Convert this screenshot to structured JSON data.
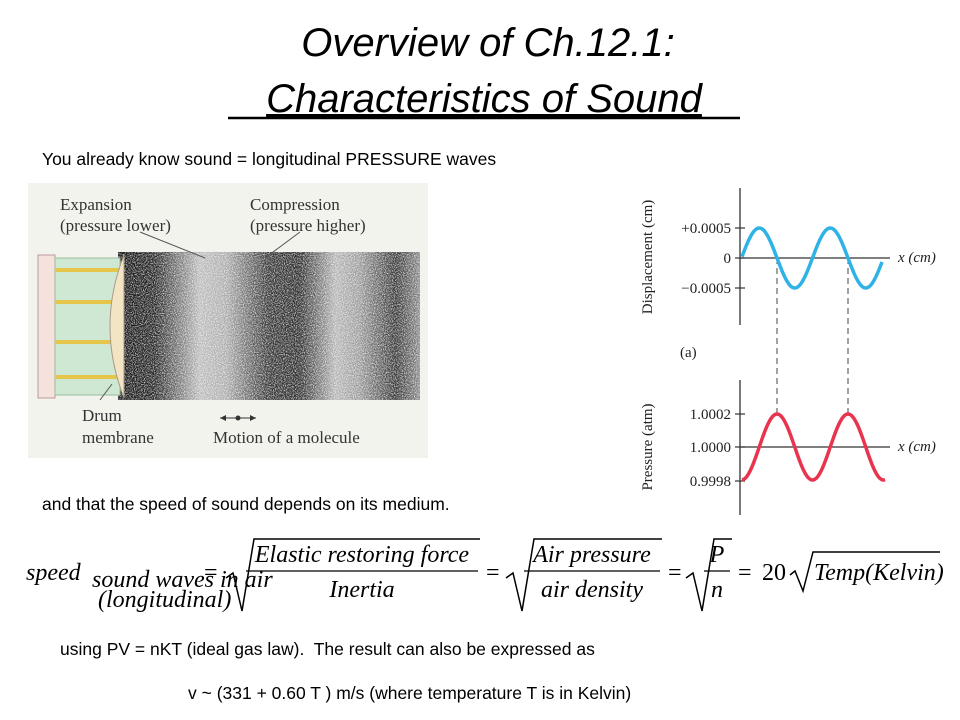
{
  "title": {
    "line1": "Overview of Ch.12.1:",
    "line2": "Characteristics of Sound"
  },
  "intro": "You already know sound = longitudinal PRESSURE waves",
  "figure_left": {
    "expansion": "Expansion",
    "expansion_note": "(pressure lower)",
    "compression": "Compression",
    "compression_note": "(pressure higher)",
    "drum": "Drum",
    "membrane": "membrane",
    "motion": "Motion of a molecule"
  },
  "figure_right": {
    "top": {
      "axis_title": "Displacement (cm)",
      "ticks": [
        "+0.0005",
        "0",
        "−0.0005"
      ],
      "x_label": "x (cm)",
      "panel": "(a)"
    },
    "bottom": {
      "axis_title": "Pressure (atm)",
      "ticks": [
        "1.0002",
        "1.0000",
        "0.9998"
      ],
      "x_label": "x (cm)"
    }
  },
  "medium_text": "and that the speed of sound depends on its medium.",
  "equation": {
    "lhs": "speed",
    "subscript": "sound waves in air",
    "note": "(longitudinal)",
    "equals": "=",
    "term1": {
      "numerator": "Elastic restoring force",
      "denominator": "Inertia"
    },
    "term2": {
      "numerator": "Air pressure",
      "denominator": "air density"
    },
    "term3": {
      "numerator": "P",
      "denominator": "n"
    },
    "coefficient": "20",
    "radicand": "Temp(Kelvin)"
  },
  "gas_law_text": "using PV = nKT (ideal gas law).  The result can also be expressed as",
  "formula_text": "v ~ (331 + 0.60 T ) m/s (where temperature T is in Kelvin)"
}
